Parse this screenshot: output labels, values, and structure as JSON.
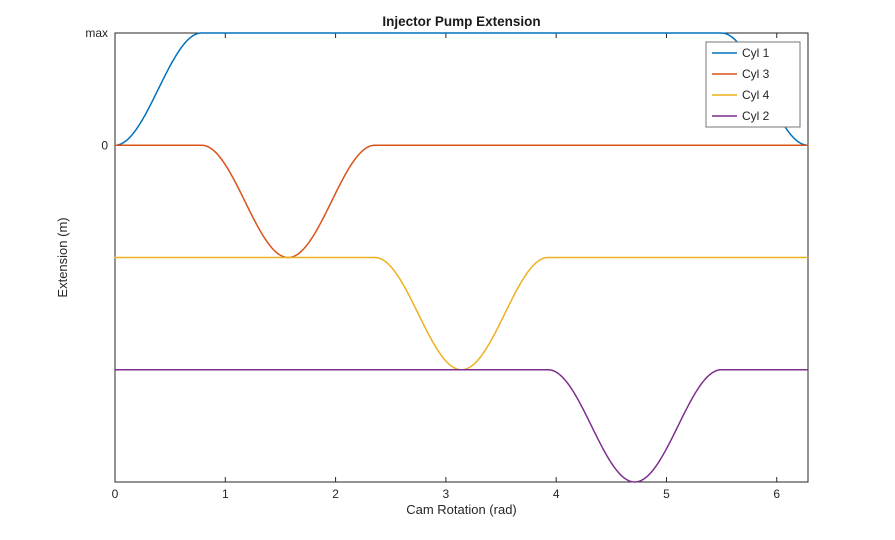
{
  "figure": {
    "background": "#ffffff"
  },
  "chart_data": {
    "type": "line",
    "title": "Injector Pump Extension",
    "xlabel": "Cam Rotation (rad)",
    "ylabel": "Extension (m)",
    "xlim": [
      0,
      6.2832
    ],
    "ylim": [
      -1,
      3
    ],
    "grid": false,
    "axis_color": "#262626",
    "x_ticks": [
      {
        "value": 0,
        "label": "0"
      },
      {
        "value": 1,
        "label": "1"
      },
      {
        "value": 2,
        "label": "2"
      },
      {
        "value": 3,
        "label": "3"
      },
      {
        "value": 4,
        "label": "4"
      },
      {
        "value": 5,
        "label": "5"
      },
      {
        "value": 6,
        "label": "6"
      }
    ],
    "y_ticks": [
      {
        "value": 3,
        "label": "max"
      },
      {
        "value": 2,
        "label": "0"
      }
    ],
    "legend": {
      "position": "top-right",
      "entries": [
        "Cyl 1",
        "Cyl 3",
        "Cyl 4",
        "Cyl 2"
      ]
    },
    "profile_note": "Each trace is a flat dwell with a raised-cosine dip of amplitude 1 (normalized units) and half-width 0.7854 rad; traces are vertically offset by 1 unit each. Dip centers: 0 and 2pi (Cyl 1), pi/2 (Cyl 3), pi (Cyl 4), 3pi/2 (Cyl 2) — firing order 1-3-4-2. Cyl 1 baseline sits at 'max', its dip minimum at '0'.",
    "series": [
      {
        "name": "Cyl 1",
        "color": "#0072BD",
        "baseline": 3,
        "amplitude": 1,
        "half_width": 0.7854,
        "dip_centers": [
          0,
          6.2832
        ]
      },
      {
        "name": "Cyl 3",
        "color": "#D95319",
        "baseline": 2,
        "amplitude": 1,
        "half_width": 0.7854,
        "dip_centers": [
          1.5708
        ]
      },
      {
        "name": "Cyl 4",
        "color": "#EDB120",
        "baseline": 1,
        "amplitude": 1,
        "half_width": 0.7854,
        "dip_centers": [
          3.1416
        ]
      },
      {
        "name": "Cyl 2",
        "color": "#7E2F8E",
        "baseline": 0,
        "amplitude": 1,
        "half_width": 0.7854,
        "dip_centers": [
          4.7124
        ]
      }
    ]
  }
}
